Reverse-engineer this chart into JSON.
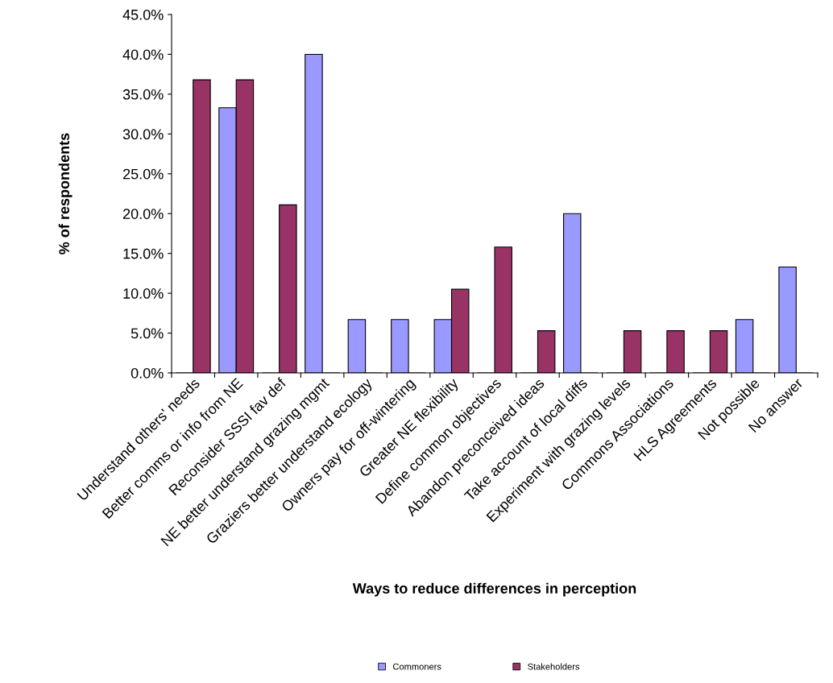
{
  "chart_data": {
    "type": "bar",
    "xlabel": "Ways to reduce differences in perception",
    "ylabel": "% of respondents",
    "categories": [
      "Understand others' needs",
      "Better comms or info from NE",
      "Reconsider SSSI fav def",
      "NE better understand grazing mgmt",
      "Graziers better understand ecology",
      "Owners pay for off-wintering",
      "Greater NE flexibility",
      "Define common objectives",
      "Abandon preconceived ideas",
      "Take account of local diffs",
      "Experiment with grazing levels",
      "Commons Associations",
      "HLS Agreements",
      "Not possible",
      "No answer"
    ],
    "series": [
      {
        "name": "Commoners",
        "color": "#9999ff",
        "values": [
          0,
          33.3,
          0,
          40.0,
          6.7,
          6.7,
          6.7,
          0,
          0,
          20.0,
          0,
          0,
          0,
          6.7,
          13.3
        ]
      },
      {
        "name": "Stakeholders",
        "color": "#993366",
        "values": [
          36.8,
          36.8,
          21.1,
          0,
          0,
          0,
          10.5,
          15.8,
          5.3,
          0,
          5.3,
          5.3,
          5.3,
          0,
          0
        ]
      }
    ],
    "ylim": [
      0,
      45
    ],
    "yticks": [
      {
        "value": 0,
        "label": "0.0%"
      },
      {
        "value": 5,
        "label": "5.0%"
      },
      {
        "value": 10,
        "label": "10.0%"
      },
      {
        "value": 15,
        "label": "15.0%"
      },
      {
        "value": 20,
        "label": "20.0%"
      },
      {
        "value": 25,
        "label": "25.0%"
      },
      {
        "value": 30,
        "label": "30.0%"
      },
      {
        "value": 35,
        "label": "35.0%"
      },
      {
        "value": 40,
        "label": "40.0%"
      },
      {
        "value": 45,
        "label": "45.0%"
      }
    ],
    "grid": false,
    "legend": "bottom"
  }
}
